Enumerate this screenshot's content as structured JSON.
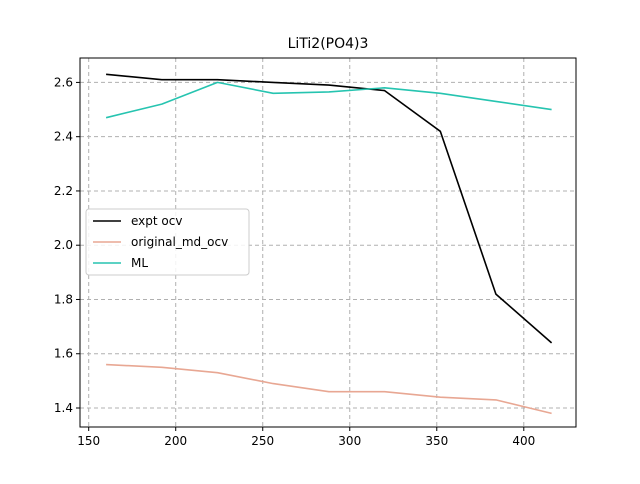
{
  "chart_data": {
    "type": "line",
    "title": "LiTi2(PO4)3",
    "xlabel": "",
    "ylabel": "",
    "xlim": [
      145,
      430
    ],
    "ylim": [
      1.33,
      2.69
    ],
    "x_ticks": [
      150,
      200,
      250,
      300,
      350,
      400
    ],
    "y_ticks": [
      1.4,
      1.6,
      1.8,
      2.0,
      2.2,
      2.4,
      2.6
    ],
    "x_tick_labels": [
      "150",
      "200",
      "250",
      "300",
      "350",
      "400"
    ],
    "y_tick_labels": [
      "1.4",
      "1.6",
      "1.8",
      "2.0",
      "2.2",
      "2.4",
      "2.6"
    ],
    "grid": true,
    "legend_position": "center-left",
    "series": [
      {
        "name": "expt ocv",
        "color": "#000000",
        "x": [
          160,
          192,
          224,
          256,
          288,
          320,
          352,
          384,
          416
        ],
        "values": [
          2.63,
          2.61,
          2.61,
          2.6,
          2.59,
          2.57,
          2.42,
          1.82,
          1.64
        ]
      },
      {
        "name": "original_md_ocv",
        "color": "#e8a793",
        "x": [
          160,
          192,
          224,
          256,
          288,
          320,
          352,
          384,
          416
        ],
        "values": [
          1.56,
          1.55,
          1.53,
          1.49,
          1.46,
          1.46,
          1.44,
          1.43,
          1.38
        ]
      },
      {
        "name": "ML",
        "color": "#26c4b0",
        "x": [
          160,
          192,
          224,
          256,
          288,
          320,
          352,
          384,
          416
        ],
        "values": [
          2.47,
          2.52,
          2.6,
          2.56,
          2.565,
          2.58,
          2.56,
          2.53,
          2.5
        ]
      }
    ]
  }
}
